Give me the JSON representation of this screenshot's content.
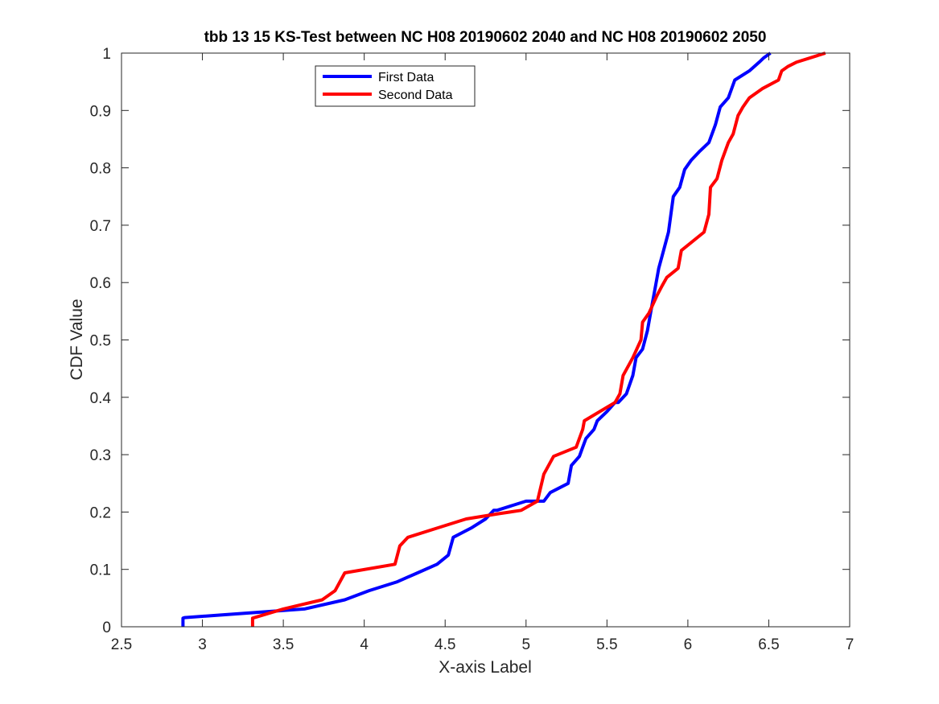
{
  "chart_data": {
    "type": "line",
    "title": "tbb 13 15 KS-Test between NC H08 20190602 2040 and NC H08 20190602 2050",
    "xlabel": "X-axis Label",
    "ylabel": "CDF Value",
    "xlim": [
      2.5,
      7
    ],
    "ylim": [
      0,
      1
    ],
    "xticks": [
      2.5,
      3,
      3.5,
      4,
      4.5,
      5,
      5.5,
      6,
      6.5,
      7
    ],
    "yticks": [
      0,
      0.1,
      0.2,
      0.3,
      0.4,
      0.5,
      0.6,
      0.7,
      0.8,
      0.9,
      1
    ],
    "xtick_labels": [
      "2.5",
      "3",
      "3.5",
      "4",
      "4.5",
      "5",
      "5.5",
      "6",
      "6.5",
      "7"
    ],
    "ytick_labels": [
      "0",
      "0.1",
      "0.2",
      "0.3",
      "0.4",
      "0.5",
      "0.6",
      "0.7",
      "0.8",
      "0.9",
      "1"
    ],
    "grid": false,
    "legend_position": "top-left",
    "series": [
      {
        "name": "First Data",
        "color": "#0000ff",
        "x": [
          2.88,
          2.88,
          2.89,
          3.63,
          3.88,
          4.03,
          4.2,
          4.33,
          4.45,
          4.52,
          4.55,
          4.66,
          4.75,
          4.8,
          4.82,
          5.0,
          5.09,
          5.11,
          5.15,
          5.26,
          5.28,
          5.33,
          5.35,
          5.37,
          5.42,
          5.44,
          5.5,
          5.55,
          5.57,
          5.62,
          5.66,
          5.68,
          5.72,
          5.75,
          5.78,
          5.8,
          5.82,
          5.85,
          5.88,
          5.91,
          5.95,
          5.98,
          6.02,
          6.07,
          6.13,
          6.17,
          6.2,
          6.25,
          6.29,
          6.38,
          6.44,
          6.47,
          6.51
        ],
        "y": [
          0.0,
          0.015,
          0.016,
          0.031,
          0.047,
          0.063,
          0.078,
          0.094,
          0.109,
          0.125,
          0.156,
          0.172,
          0.188,
          0.203,
          0.203,
          0.219,
          0.219,
          0.219,
          0.234,
          0.25,
          0.281,
          0.297,
          0.313,
          0.328,
          0.344,
          0.359,
          0.375,
          0.391,
          0.391,
          0.406,
          0.438,
          0.469,
          0.484,
          0.516,
          0.563,
          0.594,
          0.625,
          0.656,
          0.688,
          0.75,
          0.766,
          0.797,
          0.813,
          0.828,
          0.844,
          0.875,
          0.906,
          0.922,
          0.953,
          0.969,
          0.984,
          0.992,
          1.0
        ]
      },
      {
        "name": "Second Data",
        "color": "#ff0000",
        "x": [
          3.31,
          3.31,
          3.5,
          3.74,
          3.82,
          3.88,
          4.19,
          4.22,
          4.27,
          4.45,
          4.63,
          4.83,
          4.97,
          5.07,
          5.11,
          5.17,
          5.31,
          5.35,
          5.36,
          5.55,
          5.58,
          5.6,
          5.66,
          5.71,
          5.72,
          5.76,
          5.81,
          5.84,
          5.87,
          5.94,
          5.96,
          6.1,
          6.13,
          6.14,
          6.18,
          6.21,
          6.25,
          6.28,
          6.31,
          6.34,
          6.38,
          6.46,
          6.56,
          6.58,
          6.62,
          6.67,
          6.85
        ],
        "y": [
          0.0,
          0.015,
          0.031,
          0.047,
          0.063,
          0.094,
          0.109,
          0.141,
          0.156,
          0.172,
          0.188,
          0.197,
          0.203,
          0.219,
          0.266,
          0.297,
          0.313,
          0.344,
          0.359,
          0.391,
          0.406,
          0.438,
          0.469,
          0.5,
          0.531,
          0.547,
          0.578,
          0.594,
          0.609,
          0.625,
          0.656,
          0.688,
          0.719,
          0.766,
          0.781,
          0.813,
          0.844,
          0.859,
          0.891,
          0.906,
          0.922,
          0.938,
          0.953,
          0.969,
          0.977,
          0.984,
          1.0
        ]
      }
    ]
  }
}
